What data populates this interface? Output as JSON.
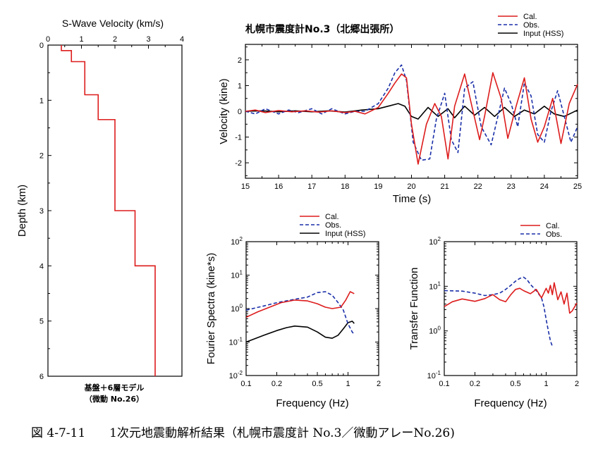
{
  "colors": {
    "cal": "#dd1c1c",
    "obs": "#1a2fa8",
    "input": "#000000"
  },
  "caption": "図 4-7-11　　1次元地震動解析結果（札幌市震度計 No.3／微動アレーNo.26)",
  "chart_data": [
    {
      "id": "profile",
      "type": "line",
      "title": "S-Wave Velocity (km/s)",
      "ylabel": "Depth (km)",
      "note": [
        "基盤＋6層モデル",
        "（微動 No.26）"
      ],
      "xlim": [
        0,
        4
      ],
      "ylim": [
        0,
        6
      ],
      "xticks": [
        "0",
        "1",
        "2",
        "3",
        "4"
      ],
      "yticks": [
        "0",
        "1",
        "2",
        "3",
        "4",
        "5",
        "6"
      ],
      "steps": [
        {
          "vs": 0.4,
          "top": 0.0,
          "bottom": 0.1
        },
        {
          "vs": 0.7,
          "top": 0.1,
          "bottom": 0.3
        },
        {
          "vs": 1.1,
          "top": 0.3,
          "bottom": 0.9
        },
        {
          "vs": 1.5,
          "top": 0.9,
          "bottom": 1.35
        },
        {
          "vs": 2.0,
          "top": 1.35,
          "bottom": 3.0
        },
        {
          "vs": 2.6,
          "top": 3.0,
          "bottom": 4.0
        },
        {
          "vs": 3.2,
          "top": 4.0,
          "bottom": 6.0
        }
      ]
    },
    {
      "id": "waveform",
      "type": "line",
      "title": "札幌市震度計No.3（北郷出張所）",
      "xlabel": "Time (s)",
      "ylabel": "Velocity (kine)",
      "xlim": [
        15,
        25
      ],
      "ylim": [
        -2.6,
        2.6
      ],
      "xticks": [
        "15",
        "16",
        "17",
        "18",
        "19",
        "20",
        "21",
        "22",
        "23",
        "24",
        "25"
      ],
      "yticks": [
        "-2",
        "-1",
        "0",
        "1",
        "2"
      ],
      "legend": [
        "Cal.",
        "Obs.",
        "Input (HSS)"
      ],
      "series": [
        {
          "name": "Cal.",
          "x": [
            15,
            15.3,
            15.6,
            16,
            16.4,
            16.8,
            17.2,
            17.6,
            18,
            18.3,
            18.6,
            19,
            19.3,
            19.5,
            19.7,
            19.85,
            20,
            20.2,
            20.45,
            20.7,
            20.9,
            21.1,
            21.3,
            21.6,
            21.8,
            22.05,
            22.2,
            22.45,
            22.7,
            22.9,
            23.15,
            23.4,
            23.6,
            23.8,
            24,
            24.25,
            24.5,
            24.75,
            25
          ],
          "y": [
            0,
            0.05,
            -0.05,
            0.03,
            -0.02,
            0.02,
            -0.03,
            0.02,
            -0.05,
            0.0,
            -0.1,
            0.15,
            0.7,
            1.1,
            1.45,
            1.3,
            -0.5,
            -2.05,
            -0.5,
            0.3,
            -0.2,
            -1.85,
            0.2,
            1.45,
            0.3,
            -1.1,
            -0.2,
            1.5,
            0.5,
            -1.05,
            0.2,
            1.3,
            -0.3,
            -1.2,
            -0.6,
            0.5,
            -1.25,
            0.3,
            1.05
          ]
        },
        {
          "name": "Obs.",
          "x": [
            15,
            15.3,
            15.6,
            16,
            16.3,
            16.6,
            17,
            17.3,
            17.6,
            18,
            18.3,
            18.6,
            19,
            19.3,
            19.5,
            19.7,
            19.85,
            20.05,
            20.3,
            20.55,
            20.75,
            21,
            21.2,
            21.4,
            21.6,
            21.85,
            22.1,
            22.4,
            22.6,
            22.8,
            23,
            23.2,
            23.4,
            23.6,
            23.8,
            24,
            24.2,
            24.4,
            24.6,
            24.8,
            25
          ],
          "y": [
            0,
            -0.1,
            0.1,
            -0.1,
            0.05,
            -0.05,
            0.1,
            -0.1,
            0.1,
            -0.1,
            0.0,
            0.0,
            0.3,
            0.9,
            1.5,
            1.8,
            1.2,
            -1.2,
            -1.9,
            -1.85,
            -0.3,
            0.7,
            -1.1,
            -1.6,
            0.9,
            1.15,
            -0.6,
            -1.3,
            -0.2,
            0.9,
            0.3,
            -0.6,
            1.1,
            0.6,
            -0.9,
            -1.2,
            0.0,
            0.8,
            -0.2,
            -1.2,
            -0.6
          ]
        },
        {
          "name": "Input (HSS)",
          "x": [
            15,
            15.5,
            16,
            16.5,
            17,
            17.5,
            18,
            18.5,
            19,
            19.3,
            19.6,
            19.8,
            20,
            20.2,
            20.5,
            20.8,
            21.1,
            21.3,
            21.6,
            21.9,
            22.2,
            22.5,
            22.8,
            23.1,
            23.4,
            23.7,
            24,
            24.3,
            24.6,
            25
          ],
          "y": [
            0,
            0.02,
            -0.02,
            0.02,
            -0.02,
            0.02,
            -0.03,
            0.05,
            0.1,
            0.2,
            0.3,
            0.2,
            -0.2,
            -0.3,
            0.15,
            -0.2,
            0.1,
            -0.25,
            0.2,
            -0.15,
            0.15,
            -0.2,
            0.15,
            -0.2,
            0.05,
            -0.1,
            0.2,
            -0.1,
            -0.2,
            0.05
          ]
        }
      ]
    },
    {
      "id": "fourier",
      "type": "line",
      "xlabel": "Frequency (Hz)",
      "ylabel": "Fourier Spectra (kine*s)",
      "xscale": "log",
      "yscale": "log",
      "xlim": [
        0.1,
        2
      ],
      "ylim": [
        0.01,
        100
      ],
      "xticks": [
        "0.1",
        "0.2",
        "0.5",
        "1",
        "2"
      ],
      "yticks": [
        "10^-2",
        "10^-1",
        "10^0",
        "10^1",
        "10^2"
      ],
      "legend": [
        "Cal.",
        "Obs.",
        "Input (HSS)"
      ],
      "series": [
        {
          "name": "Cal.",
          "x": [
            0.1,
            0.13,
            0.17,
            0.22,
            0.3,
            0.4,
            0.5,
            0.6,
            0.7,
            0.85,
            0.95,
            1.05,
            1.15
          ],
          "y": [
            0.55,
            0.8,
            1.1,
            1.5,
            1.8,
            1.7,
            1.4,
            1.1,
            1.0,
            1.1,
            1.8,
            3.2,
            2.8
          ]
        },
        {
          "name": "Obs.",
          "x": [
            0.1,
            0.15,
            0.2,
            0.3,
            0.4,
            0.5,
            0.6,
            0.7,
            0.8,
            0.9,
            1.0,
            1.1,
            1.15
          ],
          "y": [
            0.9,
            1.2,
            1.5,
            1.9,
            2.2,
            3.0,
            3.2,
            2.5,
            1.5,
            0.9,
            0.35,
            0.2,
            0.17
          ]
        },
        {
          "name": "Input (HSS)",
          "x": [
            0.1,
            0.15,
            0.2,
            0.25,
            0.3,
            0.4,
            0.5,
            0.6,
            0.7,
            0.8,
            0.9,
            1.0,
            1.1,
            1.15
          ],
          "y": [
            0.1,
            0.16,
            0.22,
            0.27,
            0.3,
            0.28,
            0.2,
            0.14,
            0.13,
            0.16,
            0.25,
            0.38,
            0.42,
            0.36
          ]
        }
      ]
    },
    {
      "id": "transfer",
      "type": "line",
      "xlabel": "Frequency (Hz)",
      "ylabel": "Transfer Function",
      "xscale": "log",
      "yscale": "log",
      "xlim": [
        0.1,
        2
      ],
      "ylim": [
        0.1,
        100
      ],
      "xticks": [
        "0.1",
        "0.2",
        "0.5",
        "1",
        "2"
      ],
      "yticks": [
        "10^-1",
        "10^0",
        "10^1",
        "10^2"
      ],
      "legend": [
        "Cal.",
        "Obs."
      ],
      "series": [
        {
          "name": "Cal.",
          "x": [
            0.1,
            0.12,
            0.15,
            0.2,
            0.25,
            0.3,
            0.35,
            0.4,
            0.45,
            0.5,
            0.55,
            0.6,
            0.7,
            0.8,
            0.9,
            1.0,
            1.05,
            1.1,
            1.15,
            1.2,
            1.3,
            1.4,
            1.5,
            1.6,
            1.7,
            1.8,
            2.0
          ],
          "y": [
            3.5,
            4.5,
            5.2,
            4.6,
            5.3,
            6.5,
            5.0,
            4.5,
            6.5,
            8.5,
            9.0,
            8.0,
            6.8,
            8.5,
            5.5,
            9.0,
            7.0,
            10.5,
            6.5,
            12.0,
            5.0,
            7.5,
            4.0,
            7.0,
            2.5,
            2.8,
            4.2
          ]
        },
        {
          "name": "Obs.",
          "x": [
            0.1,
            0.15,
            0.2,
            0.25,
            0.3,
            0.35,
            0.4,
            0.45,
            0.5,
            0.55,
            0.6,
            0.65,
            0.7,
            0.8,
            0.9,
            0.95,
            1.0,
            1.05,
            1.1,
            1.15
          ],
          "y": [
            8.0,
            7.8,
            7.0,
            6.2,
            6.5,
            7.0,
            8.5,
            10.5,
            13.0,
            15.0,
            16.0,
            14.0,
            11.0,
            8.0,
            5.5,
            3.5,
            1.8,
            1.0,
            0.6,
            0.45
          ]
        }
      ]
    }
  ]
}
